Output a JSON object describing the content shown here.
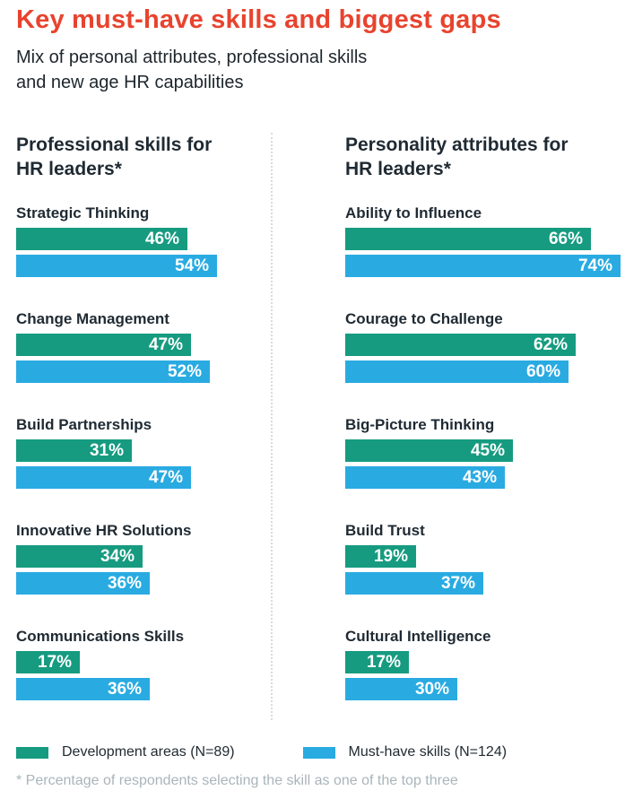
{
  "header": {
    "title": "Key must-have skills and biggest gaps",
    "subtitle_lines": [
      "Mix of personal attributes, professional skills",
      "and new age HR capabilities"
    ]
  },
  "colors": {
    "title_red": "#e8432e",
    "development_areas_green": "#169b80",
    "must_have_skills_blue": "#29abe2",
    "text_dark": "#1f2a33",
    "footnote_gray": "#a9b5ba"
  },
  "chart_data": {
    "type": "bar",
    "orientation": "horizontal",
    "value_unit": "%",
    "axis_range": [
      0,
      100
    ],
    "grid": false,
    "legend_position": "bottom",
    "series": [
      {
        "name": "Development areas (N=89)",
        "color": "#169b80"
      },
      {
        "name": "Must-have skills (N=124)",
        "color": "#29abe2"
      }
    ],
    "panels": [
      {
        "heading_lines": [
          "Professional skills for",
          "HR leaders*"
        ],
        "groups": [
          {
            "label": "Strategic Thinking",
            "values": [
              46,
              54
            ]
          },
          {
            "label": "Change Management",
            "values": [
              47,
              52
            ]
          },
          {
            "label": "Build Partnerships",
            "values": [
              31,
              47
            ]
          },
          {
            "label": "Innovative HR Solutions",
            "values": [
              34,
              36
            ]
          },
          {
            "label": "Communications Skills",
            "values": [
              17,
              36
            ]
          }
        ]
      },
      {
        "heading_lines": [
          "Personality attributes for",
          "HR leaders*"
        ],
        "groups": [
          {
            "label": "Ability to Influence",
            "values": [
              66,
              74
            ]
          },
          {
            "label": "Courage to Challenge",
            "values": [
              62,
              60
            ]
          },
          {
            "label": "Big-Picture Thinking",
            "values": [
              45,
              43
            ]
          },
          {
            "label": "Build Trust",
            "values": [
              19,
              37
            ]
          },
          {
            "label": "Cultural Intelligence",
            "values": [
              17,
              30
            ]
          }
        ]
      }
    ]
  },
  "footnote": "* Percentage of respondents selecting the skill as one of the top three"
}
